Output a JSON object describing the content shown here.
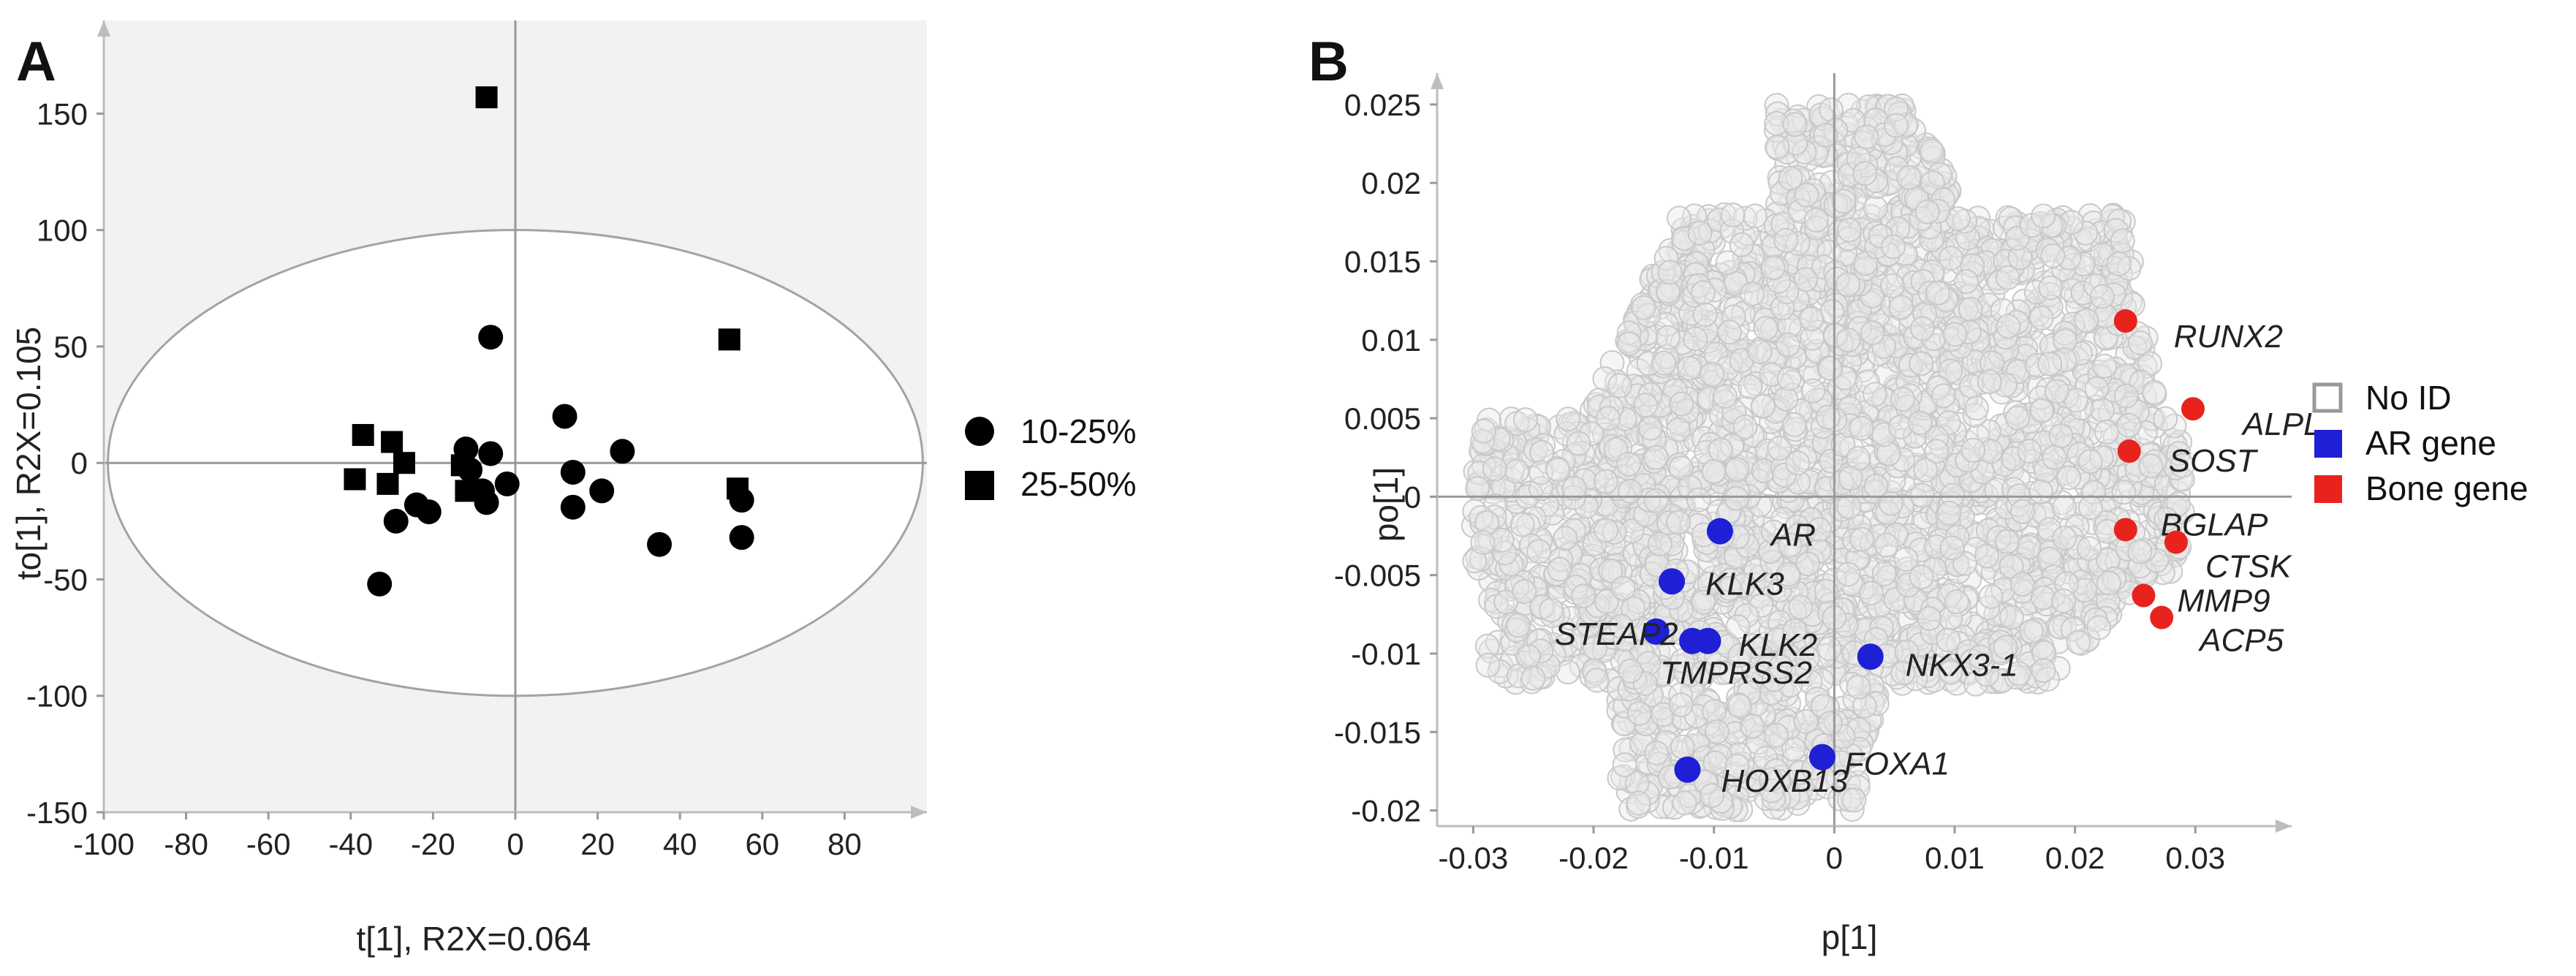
{
  "chart_data": [
    {
      "type": "scatter",
      "panel_label": "A",
      "xlabel": "t[1], R2X=0.064",
      "ylabel": "to[1], R2X=0.105",
      "xlim": [
        -100,
        100
      ],
      "ylim": [
        -150,
        190
      ],
      "xticks": [
        -100,
        -80,
        -60,
        -40,
        -20,
        0,
        20,
        40,
        60,
        80
      ],
      "yticks": [
        -150,
        -100,
        -50,
        0,
        50,
        100,
        150
      ],
      "confidence_ellipse": {
        "center": [
          0,
          0
        ],
        "rx": 99,
        "ry": 100
      },
      "legend": [
        {
          "label": "10-25%",
          "marker": "circle"
        },
        {
          "label": "25-50%",
          "marker": "square"
        }
      ],
      "series": [
        {
          "name": "10-25%",
          "marker": "circle",
          "points": [
            [
              -6,
              54
            ],
            [
              -33,
              -52
            ],
            [
              -29,
              -25
            ],
            [
              -24,
              -18
            ],
            [
              -21,
              -21
            ],
            [
              -12,
              6
            ],
            [
              -11,
              -3
            ],
            [
              -8,
              -12
            ],
            [
              -7,
              -17
            ],
            [
              -6,
              4
            ],
            [
              -2,
              -9
            ],
            [
              12,
              20
            ],
            [
              14,
              -4
            ],
            [
              14,
              -19
            ],
            [
              21,
              -12
            ],
            [
              26,
              5
            ],
            [
              35,
              -35
            ],
            [
              55,
              -16
            ],
            [
              55,
              -32
            ]
          ]
        },
        {
          "name": "25-50%",
          "marker": "square",
          "points": [
            [
              -7,
              157
            ],
            [
              52,
              53
            ],
            [
              -37,
              12
            ],
            [
              -39,
              -7
            ],
            [
              -30,
              9
            ],
            [
              -31,
              -9
            ],
            [
              -27,
              0
            ],
            [
              -13,
              -1
            ],
            [
              -12,
              -12
            ],
            [
              54,
              -11
            ]
          ]
        }
      ]
    },
    {
      "type": "scatter",
      "panel_label": "B",
      "xlabel": "p[1]",
      "ylabel": "po[1]",
      "xlim": [
        -0.033,
        0.038
      ],
      "ylim": [
        -0.021,
        0.027
      ],
      "xticks": [
        "-0.03",
        "-0.02",
        "-0.01",
        "0",
        "0.01",
        "0.02",
        "0.03"
      ],
      "yticks": [
        "-0.02",
        "-0.015",
        "-0.01",
        "-0.005",
        "0",
        "0.005",
        "0.01",
        "0.015",
        "0.02",
        "0.025"
      ],
      "legend": [
        {
          "label": "No ID",
          "color": "#999999"
        },
        {
          "label": "AR gene",
          "color": "#1f1fd6"
        },
        {
          "label": "Bone gene",
          "color": "#e8231e"
        }
      ],
      "background_cloud": {
        "label": "No ID",
        "approx_count": 4000,
        "color": "#d4d4d4"
      },
      "ar_genes": [
        {
          "gene": "AR",
          "x": -0.0095,
          "y": -0.0022
        },
        {
          "gene": "KLK3",
          "x": -0.0135,
          "y": -0.0054
        },
        {
          "gene": "STEAP2",
          "x": -0.0148,
          "y": -0.0086
        },
        {
          "gene": "TMPRSS2",
          "x": -0.0118,
          "y": -0.0092
        },
        {
          "gene": "KLK2",
          "x": -0.0105,
          "y": -0.0092
        },
        {
          "gene": "NKX3-1",
          "x": 0.003,
          "y": -0.0102
        },
        {
          "gene": "HOXB13",
          "x": -0.0122,
          "y": -0.0174
        },
        {
          "gene": "FOXA1",
          "x": -0.001,
          "y": -0.0166
        }
      ],
      "bone_genes": [
        {
          "gene": "RUNX2",
          "x": 0.0242,
          "y": 0.0112
        },
        {
          "gene": "ALPL",
          "x": 0.0298,
          "y": 0.0056
        },
        {
          "gene": "SOST",
          "x": 0.0245,
          "y": 0.0029
        },
        {
          "gene": "BGLAP",
          "x": 0.0242,
          "y": -0.0021
        },
        {
          "gene": "CTSK",
          "x": 0.0284,
          "y": -0.0029
        },
        {
          "gene": "MMP9",
          "x": 0.0257,
          "y": -0.0063
        },
        {
          "gene": "ACP5",
          "x": 0.0272,
          "y": -0.0077
        }
      ]
    }
  ]
}
